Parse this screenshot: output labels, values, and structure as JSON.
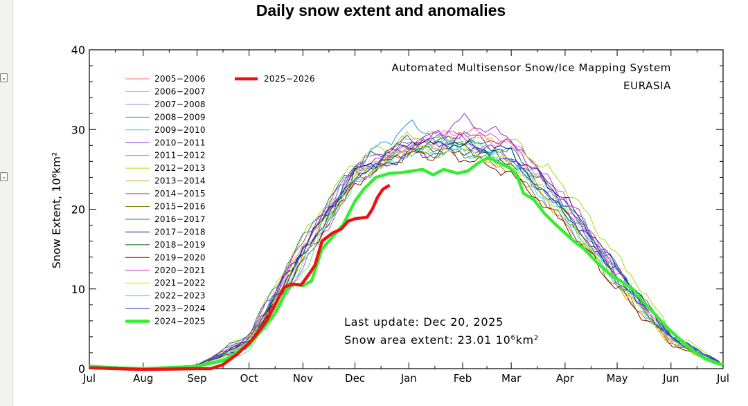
{
  "page": {
    "title": "Daily snow extent and anomalies"
  },
  "chart_data": {
    "type": "line",
    "title": "Daily snow extent and anomalies",
    "subtitle": "Automated Multisensor Snow/Ice Mapping System",
    "region": "EURASIA",
    "ylabel": "Snow Extent, 10⁶km²",
    "xlabel": "",
    "ylim": [
      0,
      40
    ],
    "yticks": [
      0,
      10,
      20,
      30,
      40
    ],
    "xticks": [
      "Jul",
      "Aug",
      "Sep",
      "Oct",
      "Nov",
      "Dec",
      "Jan",
      "Feb",
      "Mar",
      "Apr",
      "May",
      "Jun",
      "Jul"
    ],
    "grid": false,
    "legend_position": "top-left",
    "annotations": {
      "last_update": "Last update: Dec 20, 2025",
      "extent_prefix": "Snow area extent: 23.01 10",
      "extent_sup": "6",
      "extent_suffix": "km²"
    },
    "series": [
      {
        "name": "2005−2006",
        "color": "#ff7373",
        "style": "thin",
        "offset": 0.6,
        "values": [
          0.3,
          0.1,
          0.4,
          3.1,
          14.2,
          23.8,
          27.5,
          29.8,
          27.6,
          20.1,
          12.0,
          3.6,
          0.5
        ]
      },
      {
        "name": "2006−2007",
        "color": "#70e070",
        "style": "thin",
        "offset": -0.5,
        "values": [
          0.3,
          0.1,
          0.3,
          2.2,
          12.5,
          24.4,
          29.4,
          29.2,
          26.0,
          20.5,
          11.3,
          3.7,
          0.5
        ]
      },
      {
        "name": "2007−2008",
        "color": "#8c8cf2",
        "style": "thin",
        "offset": 0.3,
        "values": [
          0.3,
          0.1,
          0.4,
          3.6,
          15.0,
          24.7,
          27.7,
          28.4,
          26.3,
          18.2,
          10.7,
          3.6,
          0.4
        ]
      },
      {
        "name": "2008−2009",
        "color": "#1e90ff",
        "style": "thin",
        "offset": 1.1,
        "values": [
          0.3,
          0.1,
          0.4,
          3.4,
          14.4,
          25.0,
          30.2,
          27.4,
          25.3,
          19.8,
          11.8,
          3.9,
          0.5
        ]
      },
      {
        "name": "2009−2010",
        "color": "#2ee0b0",
        "style": "thin",
        "offset": -0.8,
        "values": [
          0.3,
          0.1,
          0.3,
          2.8,
          13.7,
          23.9,
          28.0,
          28.7,
          27.2,
          20.9,
          12.6,
          4.2,
          0.6
        ]
      },
      {
        "name": "2010−2011",
        "color": "#9932cc",
        "style": "thin",
        "offset": 0.9,
        "values": [
          0.3,
          0.1,
          0.4,
          2.6,
          14.8,
          24.3,
          27.3,
          30.9,
          28.5,
          20.3,
          11.5,
          3.5,
          0.5
        ]
      },
      {
        "name": "2011−2012",
        "color": "#e040e0",
        "style": "thin",
        "offset": -0.2,
        "values": [
          0.3,
          0.1,
          0.4,
          2.9,
          12.8,
          23.4,
          27.9,
          29.6,
          28.8,
          21.2,
          12.2,
          3.8,
          0.5
        ]
      },
      {
        "name": "2012−2013",
        "color": "#a0e000",
        "style": "thin",
        "offset": 1.4,
        "values": [
          0.3,
          0.1,
          0.4,
          4.0,
          16.0,
          25.6,
          28.4,
          28.0,
          28.2,
          22.4,
          13.5,
          4.4,
          0.6
        ]
      },
      {
        "name": "2013−2014",
        "color": "#d89a30",
        "style": "thin",
        "offset": -1.0,
        "values": [
          0.3,
          0.1,
          0.3,
          3.7,
          15.6,
          24.8,
          27.6,
          27.9,
          25.6,
          19.1,
          10.8,
          3.3,
          0.4
        ]
      },
      {
        "name": "2014−2015",
        "color": "#8b2aa8",
        "style": "thin",
        "offset": 0.1,
        "values": [
          0.3,
          0.1,
          0.4,
          3.9,
          15.2,
          25.2,
          28.1,
          28.6,
          26.6,
          19.6,
          11.4,
          3.5,
          0.5
        ]
      },
      {
        "name": "2015−2016",
        "color": "#808000",
        "style": "thin",
        "offset": -0.6,
        "values": [
          0.3,
          0.1,
          0.3,
          3.2,
          14.0,
          24.0,
          27.2,
          27.5,
          25.1,
          18.6,
          10.6,
          3.4,
          0.4
        ]
      },
      {
        "name": "2016−2017",
        "color": "#1f7f7f",
        "style": "thin",
        "offset": 0.7,
        "values": [
          0.3,
          0.1,
          0.4,
          4.2,
          16.2,
          25.4,
          27.8,
          28.3,
          27.0,
          20.8,
          12.4,
          4.0,
          0.5
        ]
      },
      {
        "name": "2017−2018",
        "color": "#101080",
        "style": "thin",
        "offset": -0.3,
        "values": [
          0.3,
          0.1,
          0.4,
          3.0,
          14.6,
          24.6,
          28.6,
          28.1,
          27.4,
          21.4,
          12.8,
          4.1,
          0.6
        ]
      },
      {
        "name": "2018−2019",
        "color": "#116611",
        "style": "thin",
        "offset": 0.4,
        "values": [
          0.3,
          0.1,
          0.4,
          3.5,
          14.9,
          24.2,
          27.0,
          27.7,
          25.8,
          19.4,
          11.1,
          3.7,
          0.5
        ]
      },
      {
        "name": "2019−2020",
        "color": "#8b0000",
        "style": "thin",
        "offset": -0.9,
        "values": [
          0.3,
          0.1,
          0.3,
          3.3,
          13.9,
          23.6,
          27.4,
          26.9,
          24.8,
          18.4,
          10.4,
          3.2,
          0.4
        ]
      },
      {
        "name": "2020−2021",
        "color": "#c020c0",
        "style": "thin",
        "offset": 1.2,
        "values": [
          0.3,
          0.1,
          0.4,
          3.8,
          15.4,
          24.9,
          28.2,
          28.9,
          27.7,
          21.0,
          12.1,
          3.9,
          0.5
        ]
      },
      {
        "name": "2021−2022",
        "color": "#e8e800",
        "style": "thin",
        "offset": -0.4,
        "values": [
          0.3,
          0.1,
          0.3,
          3.4,
          14.3,
          24.1,
          27.9,
          27.3,
          26.1,
          19.2,
          11.0,
          3.4,
          0.4
        ]
      },
      {
        "name": "2022−2023",
        "color": "#30e8e8",
        "style": "thin",
        "offset": 0.2,
        "values": [
          0.3,
          0.1,
          0.4,
          3.1,
          13.5,
          23.7,
          26.8,
          27.2,
          25.5,
          18.9,
          10.9,
          3.6,
          0.5
        ]
      },
      {
        "name": "2023−2024",
        "color": "#2030e0",
        "style": "thin",
        "offset": -0.7,
        "values": [
          0.3,
          0.1,
          0.4,
          3.6,
          14.7,
          24.5,
          27.1,
          27.8,
          26.4,
          19.9,
          12.3,
          4.3,
          0.6
        ]
      },
      {
        "name": "2024−2025",
        "color": "#33ee33",
        "style": "thick",
        "offset": 0,
        "points": [
          [
            0,
            0.3
          ],
          [
            15,
            0.1
          ],
          [
            31,
            0.0
          ],
          [
            46,
            0.1
          ],
          [
            62,
            0.3
          ],
          [
            77,
            1.0
          ],
          [
            92,
            3.0
          ],
          [
            100,
            5.0
          ],
          [
            107,
            7.0
          ],
          [
            114,
            10.0
          ],
          [
            118,
            10.6
          ],
          [
            123,
            10.4
          ],
          [
            128,
            11.0
          ],
          [
            134,
            15.0
          ],
          [
            140,
            16.5
          ],
          [
            146,
            18.0
          ],
          [
            153,
            21.0
          ],
          [
            158,
            22.5
          ],
          [
            165,
            24.0
          ],
          [
            173,
            24.5
          ],
          [
            180,
            24.6
          ],
          [
            186,
            24.8
          ],
          [
            192,
            25.0
          ],
          [
            198,
            24.3
          ],
          [
            204,
            25.0
          ],
          [
            212,
            24.5
          ],
          [
            218,
            24.8
          ],
          [
            224,
            25.8
          ],
          [
            230,
            26.5
          ],
          [
            236,
            25.8
          ],
          [
            242,
            25.2
          ],
          [
            246,
            24.4
          ],
          [
            250,
            22.0
          ],
          [
            256,
            21.2
          ],
          [
            262,
            19.5
          ],
          [
            268,
            18.2
          ],
          [
            274,
            17.0
          ],
          [
            279,
            16.0
          ],
          [
            285,
            15.0
          ],
          [
            292,
            13.4
          ],
          [
            299,
            12.0
          ],
          [
            306,
            11.0
          ],
          [
            313,
            10.0
          ],
          [
            320,
            8.2
          ],
          [
            327,
            6.5
          ],
          [
            334,
            4.9
          ],
          [
            341,
            3.5
          ],
          [
            348,
            2.2
          ],
          [
            355,
            1.2
          ],
          [
            361,
            0.7
          ],
          [
            365,
            0.5
          ]
        ]
      },
      {
        "name": "2025−2026",
        "color": "#ee1111",
        "style": "thick",
        "offset": 0,
        "points": [
          [
            0,
            0.1
          ],
          [
            31,
            -0.1
          ],
          [
            62,
            0.0
          ],
          [
            70,
            0.0
          ],
          [
            77,
            0.5
          ],
          [
            85,
            1.8
          ],
          [
            92,
            3.2
          ],
          [
            97,
            4.5
          ],
          [
            102,
            6.0
          ],
          [
            107,
            8.0
          ],
          [
            112,
            10.2
          ],
          [
            117,
            10.6
          ],
          [
            122,
            10.5
          ],
          [
            127,
            12.0
          ],
          [
            130,
            13.0
          ],
          [
            134,
            16.0
          ],
          [
            140,
            17.0
          ],
          [
            145,
            17.5
          ],
          [
            149,
            18.5
          ],
          [
            153,
            18.8
          ],
          [
            160,
            19.0
          ],
          [
            163,
            20.0
          ],
          [
            166,
            21.5
          ],
          [
            169,
            22.5
          ],
          [
            172,
            22.9
          ],
          [
            173,
            23.0
          ]
        ]
      }
    ]
  }
}
